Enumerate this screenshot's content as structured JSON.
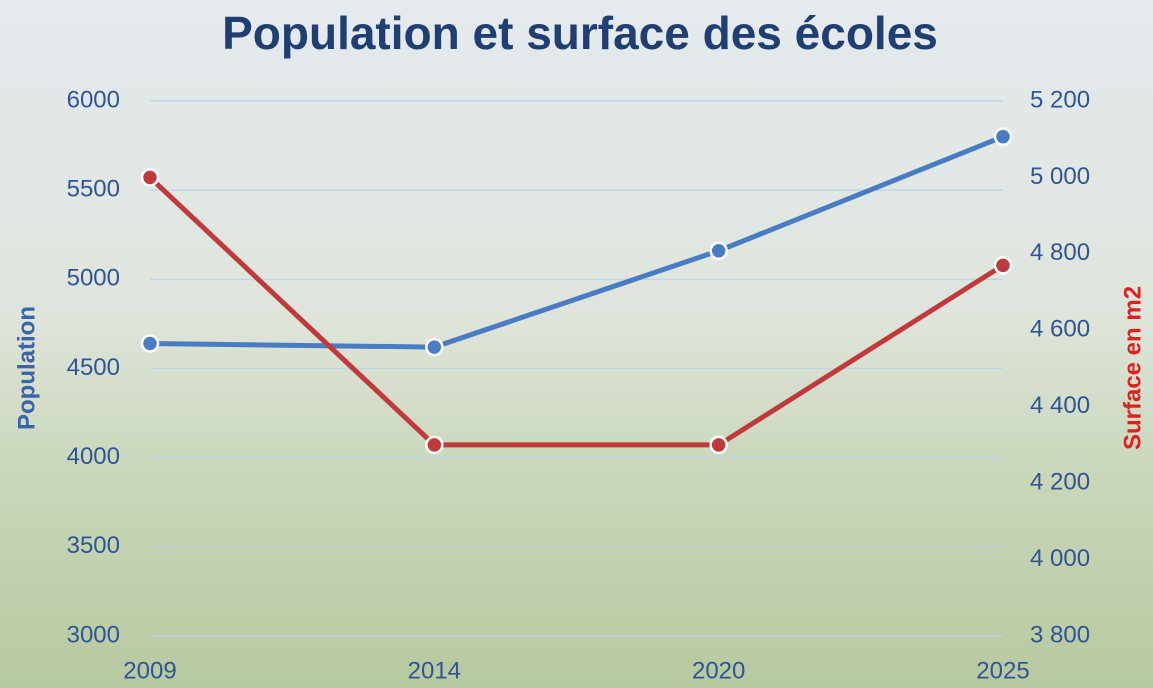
{
  "chart_data": {
    "type": "line",
    "title": "Population et surface des écoles",
    "categories": [
      "2009",
      "2014",
      "2020",
      "2025"
    ],
    "series": [
      {
        "name": "Population",
        "color": "#4a7cc4",
        "values": [
          4640,
          4620,
          5160,
          5800
        ]
      },
      {
        "name": "Surface en m2",
        "color": "#c0393b",
        "axis": "y2",
        "values": [
          5000,
          4300,
          4300,
          4770
        ]
      }
    ],
    "ylabel": "Population",
    "y2label": "Surface en m2",
    "ylim": [
      3000,
      6000
    ],
    "yticks": [
      3000,
      3500,
      4000,
      4500,
      5000,
      5500,
      6000
    ],
    "y2lim": [
      3800,
      5200
    ],
    "y2ticks": [
      {
        "value": 3800,
        "label": "3 800"
      },
      {
        "value": 4000,
        "label": "4 000"
      },
      {
        "value": 4200,
        "label": "4 200"
      },
      {
        "value": 4400,
        "label": "4 400"
      },
      {
        "value": 4600,
        "label": "4 600"
      },
      {
        "value": 4800,
        "label": "4 800"
      },
      {
        "value": 5000,
        "label": "5 000"
      },
      {
        "value": 5200,
        "label": "5 200"
      }
    ],
    "grid": true
  }
}
